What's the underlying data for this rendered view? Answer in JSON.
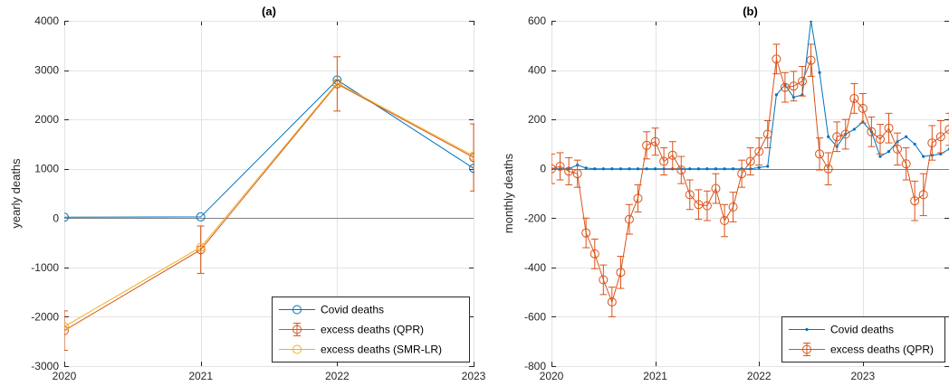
{
  "chart_data": [
    {
      "panel": "(a)",
      "type": "line",
      "title": "(a)",
      "xlabel": "",
      "ylabel": "yearly deaths",
      "xlim": [
        2020,
        2023
      ],
      "ylim": [
        -3000,
        4000
      ],
      "xticks": [
        2020,
        2021,
        2022,
        2023
      ],
      "yticks": [
        -3000,
        -2000,
        -1000,
        0,
        1000,
        2000,
        3000,
        4000
      ],
      "x": [
        2020,
        2021,
        2022,
        2023
      ],
      "grid": true,
      "legend_position": "bottom-right",
      "series": [
        {
          "name": "Covid deaths",
          "color": "#0072BD",
          "marker": "circle",
          "values": [
            20,
            25,
            2800,
            1010
          ]
        },
        {
          "name": "excess deaths (QPR)",
          "color": "#D95319",
          "marker": "circle-errorbar",
          "values": [
            -2280,
            -640,
            2720,
            1230
          ],
          "error": [
            400,
            480,
            550,
            680
          ]
        },
        {
          "name": "excess deaths (SMR-LR)",
          "color": "#EDB120",
          "marker": "circle",
          "values": [
            -2200,
            -590,
            2740,
            1260
          ]
        }
      ]
    },
    {
      "panel": "(b)",
      "type": "line",
      "title": "(b)",
      "xlabel": "",
      "ylabel": "monthly deaths",
      "xlim": [
        2020,
        2023.83
      ],
      "ylim": [
        -800,
        600
      ],
      "xticks": [
        2020,
        2021,
        2022,
        2023
      ],
      "yticks": [
        -800,
        -600,
        -400,
        -200,
        0,
        200,
        400,
        600
      ],
      "grid": true,
      "legend_position": "bottom-right",
      "series": [
        {
          "name": "Covid deaths",
          "color": "#0072BD",
          "marker": "point",
          "x": [
            2020,
            2020.083,
            2020.167,
            2020.25,
            2020.333,
            2020.417,
            2020.5,
            2020.583,
            2020.667,
            2020.75,
            2020.833,
            2020.917,
            2021,
            2021.083,
            2021.167,
            2021.25,
            2021.333,
            2021.417,
            2021.5,
            2021.583,
            2021.667,
            2021.75,
            2021.833,
            2021.917,
            2022,
            2022.083,
            2022.167,
            2022.25,
            2022.333,
            2022.417,
            2022.5,
            2022.583,
            2022.667,
            2022.75,
            2022.833,
            2022.917,
            2023,
            2023.083,
            2023.167,
            2023.25,
            2023.333,
            2023.417,
            2023.5,
            2023.583,
            2023.667,
            2023.75,
            2023.833
          ],
          "values": [
            0,
            0,
            0,
            15,
            3,
            0,
            0,
            0,
            0,
            0,
            0,
            0,
            0,
            0,
            0,
            0,
            0,
            0,
            0,
            0,
            0,
            0,
            0,
            0,
            5,
            10,
            300,
            340,
            290,
            300,
            600,
            390,
            130,
            90,
            140,
            160,
            190,
            150,
            50,
            70,
            110,
            130,
            100,
            50,
            55,
            60,
            80
          ]
        },
        {
          "name": "excess deaths (QPR)",
          "color": "#D95319",
          "marker": "circle-errorbar",
          "x": [
            2020,
            2020.083,
            2020.167,
            2020.25,
            2020.333,
            2020.417,
            2020.5,
            2020.583,
            2020.667,
            2020.75,
            2020.833,
            2020.917,
            2021,
            2021.083,
            2021.167,
            2021.25,
            2021.333,
            2021.417,
            2021.5,
            2021.583,
            2021.667,
            2021.75,
            2021.833,
            2021.917,
            2022,
            2022.083,
            2022.167,
            2022.25,
            2022.333,
            2022.417,
            2022.5,
            2022.583,
            2022.667,
            2022.75,
            2022.833,
            2022.917,
            2023,
            2023.083,
            2023.167,
            2023.25,
            2023.333,
            2023.417,
            2023.5,
            2023.583,
            2023.667,
            2023.75,
            2023.833
          ],
          "values": [
            0,
            10,
            -10,
            -20,
            -260,
            -345,
            -450,
            -540,
            -420,
            -205,
            -120,
            95,
            110,
            30,
            55,
            -5,
            -105,
            -145,
            -150,
            -80,
            -210,
            -155,
            -20,
            30,
            70,
            140,
            445,
            330,
            335,
            355,
            440,
            60,
            0,
            130,
            140,
            285,
            245,
            150,
            120,
            165,
            80,
            20,
            -130,
            -105,
            105,
            130,
            160
          ],
          "error": [
            60,
            55,
            55,
            55,
            60,
            60,
            60,
            60,
            65,
            60,
            55,
            55,
            55,
            55,
            55,
            55,
            60,
            60,
            60,
            60,
            65,
            60,
            55,
            55,
            55,
            55,
            60,
            60,
            60,
            60,
            65,
            65,
            65,
            60,
            60,
            60,
            60,
            60,
            60,
            60,
            65,
            65,
            80,
            85,
            70,
            65,
            65
          ]
        }
      ]
    }
  ]
}
